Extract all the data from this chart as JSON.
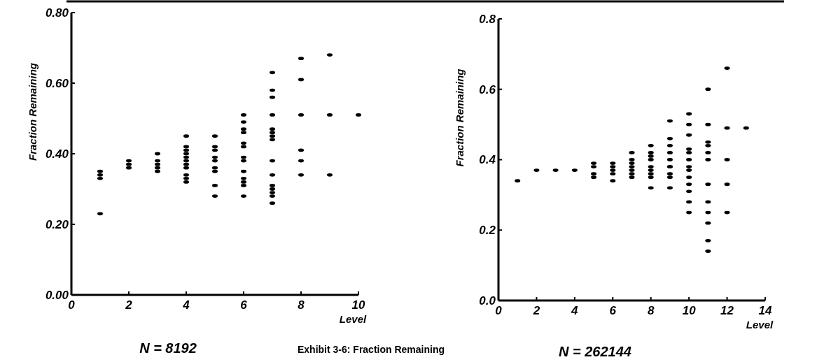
{
  "chart_data": [
    {
      "type": "scatter",
      "xlabel": "Level",
      "ylabel": "Fraction Remaining",
      "marker": "circle",
      "xlim": [
        0,
        10
      ],
      "ylim": [
        0,
        0.8
      ],
      "xticks": [
        0,
        2,
        4,
        6,
        8,
        10
      ],
      "yticks": [
        {
          "value": 0,
          "label": "0.00"
        },
        {
          "value": 0.2,
          "label": "0.20"
        },
        {
          "value": 0.4,
          "label": "0.40"
        },
        {
          "value": 0.6,
          "label": "0.60"
        },
        {
          "value": 0.8,
          "label": "0.80"
        }
      ],
      "annotations": [
        "N = 8192",
        "Exhibit 3-6: Fraction Remaining"
      ],
      "series": [
        {
          "color": "#000000",
          "x": [
            1,
            1,
            1,
            1,
            2,
            2,
            2,
            3,
            3,
            3,
            3,
            3,
            4,
            4,
            4,
            4,
            4,
            4,
            4,
            4,
            4,
            4,
            4,
            5,
            5,
            5,
            5,
            5,
            5,
            5,
            5,
            5,
            6,
            6,
            6,
            6,
            6,
            6,
            6,
            6,
            6,
            6,
            6,
            6,
            6,
            7,
            7,
            7,
            7,
            7,
            7,
            7,
            7,
            7,
            7,
            7,
            7,
            7,
            7,
            7,
            8,
            8,
            8,
            8,
            8,
            8,
            9,
            9,
            9,
            10
          ],
          "values": [
            0.35,
            0.34,
            0.33,
            0.23,
            0.38,
            0.37,
            0.36,
            0.4,
            0.38,
            0.37,
            0.36,
            0.35,
            0.45,
            0.42,
            0.41,
            0.4,
            0.39,
            0.38,
            0.37,
            0.36,
            0.34,
            0.33,
            0.32,
            0.45,
            0.42,
            0.41,
            0.39,
            0.38,
            0.36,
            0.35,
            0.31,
            0.28,
            0.51,
            0.49,
            0.47,
            0.46,
            0.43,
            0.42,
            0.39,
            0.38,
            0.35,
            0.33,
            0.32,
            0.31,
            0.28,
            0.63,
            0.58,
            0.56,
            0.51,
            0.47,
            0.46,
            0.45,
            0.44,
            0.38,
            0.34,
            0.31,
            0.3,
            0.29,
            0.28,
            0.26,
            0.67,
            0.61,
            0.51,
            0.41,
            0.38,
            0.34,
            0.68,
            0.51,
            0.34,
            0.51
          ]
        }
      ]
    },
    {
      "type": "scatter",
      "xlabel": "Level",
      "ylabel": "Fraction Remaining",
      "marker": "circle",
      "xlim": [
        0,
        14
      ],
      "ylim": [
        0,
        0.8
      ],
      "xticks": [
        0,
        2,
        4,
        6,
        8,
        10,
        12,
        14
      ],
      "yticks": [
        {
          "value": 0,
          "label": "0.0"
        },
        {
          "value": 0.2,
          "label": "0.2"
        },
        {
          "value": 0.4,
          "label": "0.4"
        },
        {
          "value": 0.6,
          "label": "0.6"
        },
        {
          "value": 0.8,
          "label": "0.8"
        }
      ],
      "annotations": [
        "N = 262144"
      ],
      "series": [
        {
          "color": "#000000",
          "x": [
            1,
            2,
            3,
            4,
            5,
            5,
            5,
            5,
            6,
            6,
            6,
            6,
            6,
            7,
            7,
            7,
            7,
            7,
            7,
            7,
            8,
            8,
            8,
            8,
            8,
            8,
            8,
            8,
            8,
            9,
            9,
            9,
            9,
            9,
            9,
            9,
            9,
            9,
            9,
            10,
            10,
            10,
            10,
            10,
            10,
            10,
            10,
            10,
            10,
            10,
            10,
            10,
            11,
            11,
            11,
            11,
            11,
            11,
            11,
            11,
            11,
            11,
            11,
            11,
            12,
            12,
            12,
            12,
            12,
            13
          ],
          "values": [
            0.34,
            0.37,
            0.37,
            0.37,
            0.39,
            0.38,
            0.36,
            0.35,
            0.39,
            0.38,
            0.37,
            0.36,
            0.34,
            0.42,
            0.4,
            0.39,
            0.38,
            0.37,
            0.36,
            0.35,
            0.44,
            0.42,
            0.41,
            0.4,
            0.38,
            0.37,
            0.36,
            0.35,
            0.32,
            0.51,
            0.46,
            0.44,
            0.42,
            0.4,
            0.38,
            0.38,
            0.36,
            0.35,
            0.32,
            0.53,
            0.5,
            0.47,
            0.43,
            0.42,
            0.4,
            0.38,
            0.37,
            0.35,
            0.33,
            0.31,
            0.28,
            0.25,
            0.6,
            0.5,
            0.45,
            0.44,
            0.42,
            0.4,
            0.33,
            0.28,
            0.25,
            0.22,
            0.17,
            0.14,
            0.66,
            0.49,
            0.4,
            0.33,
            0.25,
            0.49
          ]
        }
      ]
    }
  ]
}
